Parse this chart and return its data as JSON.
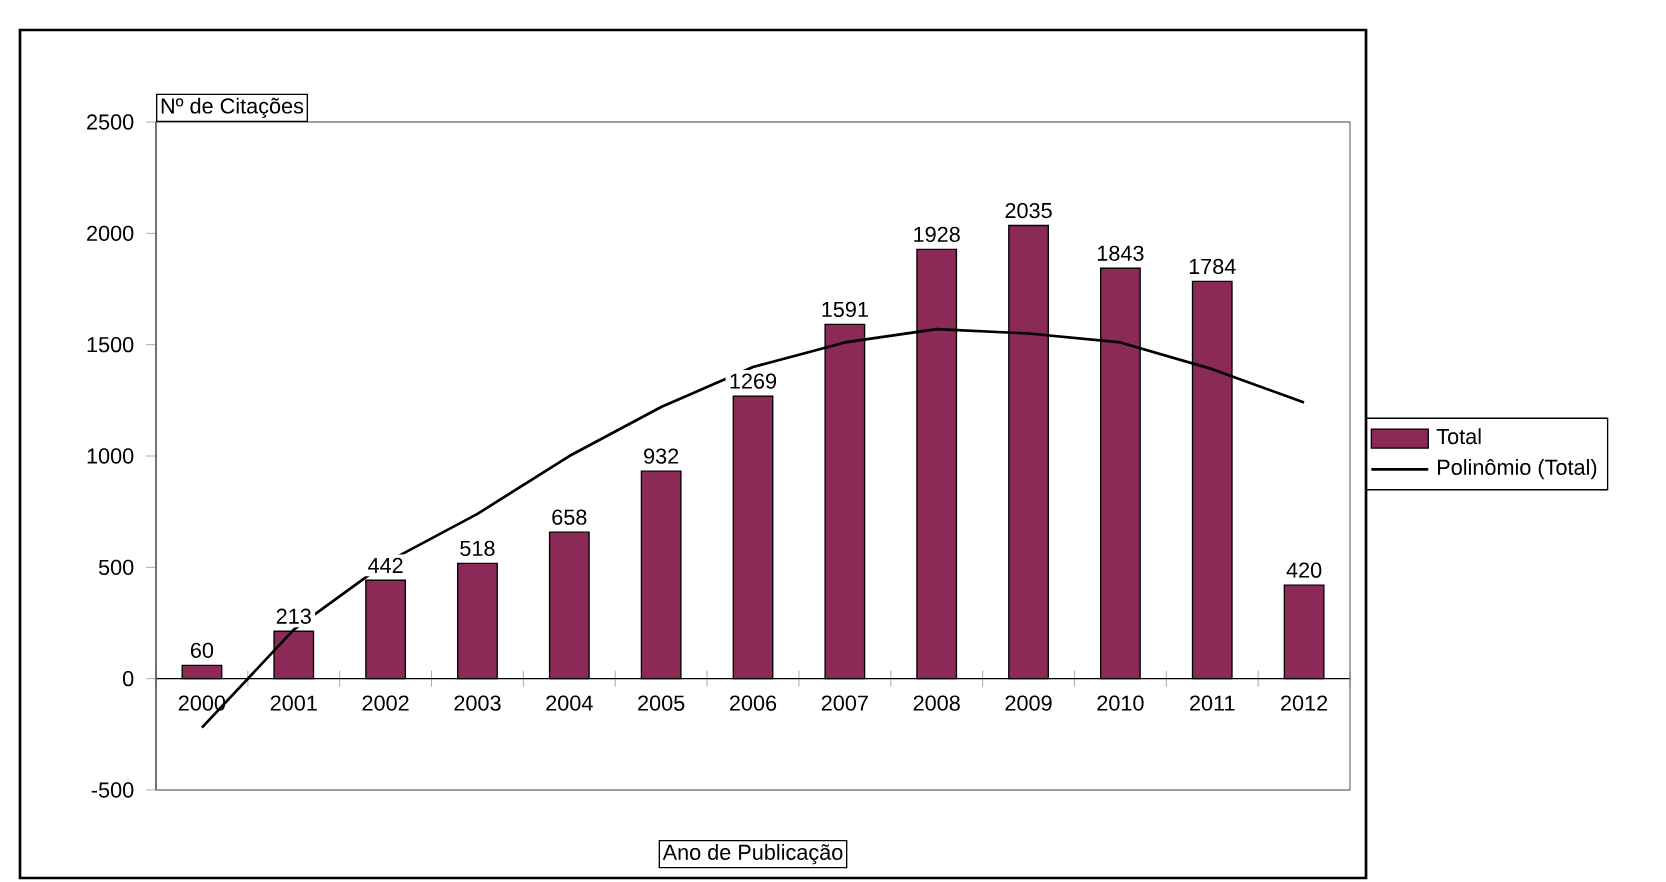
{
  "chart_data": {
    "type": "bar",
    "xlabel": "Ano de Publicação",
    "ylabel": "Nº de Citações",
    "categories": [
      "2000",
      "2001",
      "2002",
      "2003",
      "2004",
      "2005",
      "2006",
      "2007",
      "2008",
      "2009",
      "2010",
      "2011",
      "2012"
    ],
    "series": [
      {
        "name": "Total",
        "color": "#8b2a57",
        "values": [
          60,
          213,
          442,
          518,
          658,
          932,
          1269,
          1591,
          1928,
          2035,
          1843,
          1784,
          420
        ],
        "value_labels": [
          "60",
          "213",
          "442",
          "518",
          "658",
          "932",
          "1269",
          "1591",
          "1928",
          "2035",
          "1843",
          "1784",
          "420"
        ]
      },
      {
        "name": "Polinômio (Total)",
        "type": "line",
        "color": "#000000",
        "values": [
          -220,
          220,
          520,
          740,
          1000,
          1220,
          1400,
          1510,
          1570,
          1550,
          1510,
          1390,
          1240
        ]
      }
    ],
    "ylim": [
      -500,
      2500
    ],
    "yticks": [
      -500,
      0,
      500,
      1000,
      1500,
      2000,
      2500
    ],
    "legend": "right"
  }
}
